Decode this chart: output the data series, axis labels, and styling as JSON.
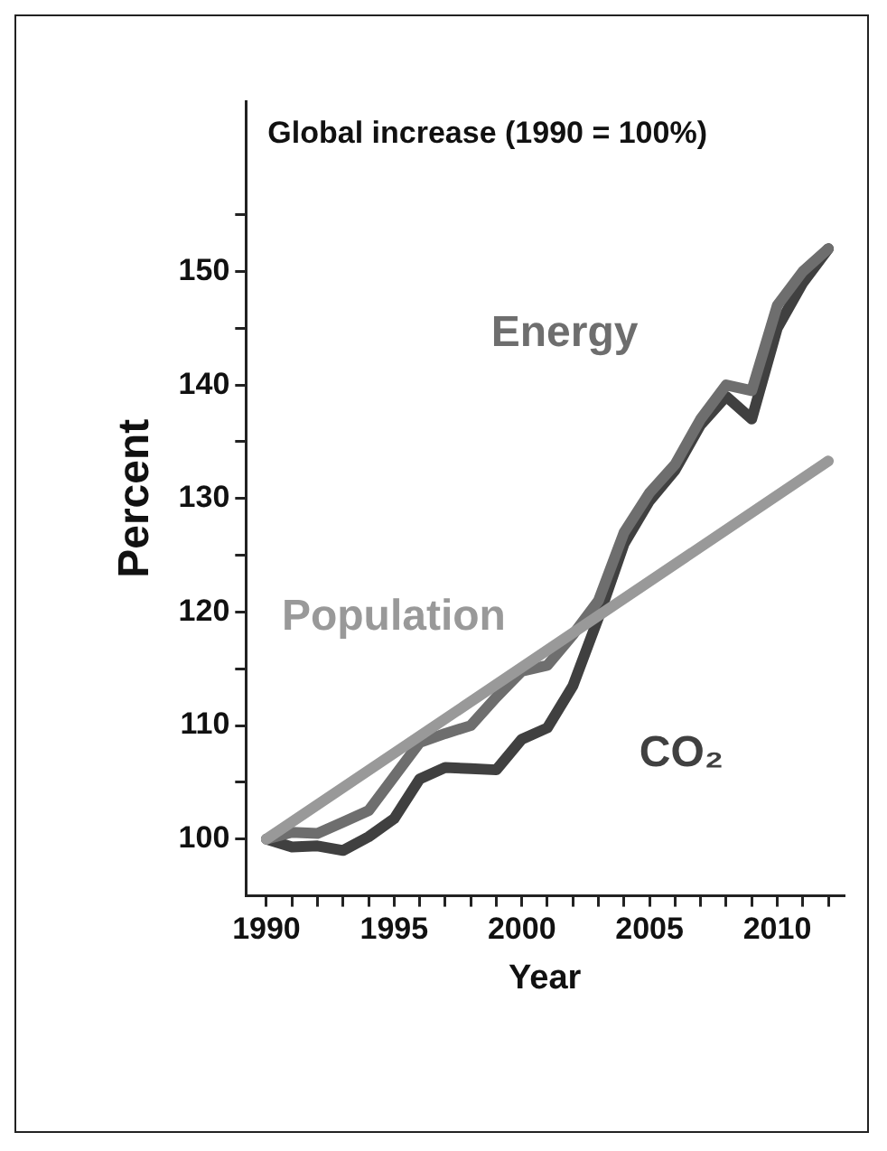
{
  "chart_data": {
    "type": "line",
    "title": "Global increase (1990 = 100%)",
    "xlabel": "Year",
    "ylabel": "Percent",
    "xlim": [
      1989.2,
      2012.6
    ],
    "xticks": [
      1990,
      {
        "value": 1991,
        "label": null
      },
      {
        "value": 1992,
        "label": null
      },
      {
        "value": 1993,
        "label": null
      },
      {
        "value": 1994,
        "label": null
      },
      1995,
      {
        "value": 1996,
        "label": null
      },
      {
        "value": 1997,
        "label": null
      },
      {
        "value": 1998,
        "label": null
      },
      {
        "value": 1999,
        "label": null
      },
      2000,
      {
        "value": 2001,
        "label": null
      },
      {
        "value": 2002,
        "label": null
      },
      {
        "value": 2003,
        "label": null
      },
      {
        "value": 2004,
        "label": null
      },
      2005,
      {
        "value": 2006,
        "label": null
      },
      {
        "value": 2007,
        "label": null
      },
      {
        "value": 2008,
        "label": null
      },
      {
        "value": 2009,
        "label": null
      },
      2010,
      {
        "value": 2011,
        "label": null
      },
      {
        "value": 2012,
        "label": null
      }
    ],
    "ylim": [
      95,
      165
    ],
    "yticks": [
      100,
      {
        "value": 105,
        "label": null
      },
      110,
      {
        "value": 115,
        "label": null
      },
      120,
      {
        "value": 125,
        "label": null
      },
      130,
      {
        "value": 135,
        "label": null
      },
      140,
      {
        "value": 145,
        "label": null
      },
      150,
      {
        "value": 155,
        "label": null
      }
    ],
    "grid": false,
    "legend": false,
    "marker": "none",
    "line_style": "solid",
    "series": [
      {
        "name": "Population",
        "color": "#999999",
        "x": [
          1990,
          2012
        ],
        "values": [
          100,
          133.3
        ]
      },
      {
        "name": "Energy",
        "color": "#6e6e6e",
        "x": [
          1990,
          1991,
          1992,
          1993,
          1994,
          1995,
          1996,
          1997,
          1998,
          1999,
          2000,
          2001,
          2002,
          2003,
          2004,
          2005,
          2006,
          2007,
          2008,
          2009,
          2010,
          2011,
          2012
        ],
        "values": [
          100,
          100.6,
          100.5,
          101.5,
          102.5,
          105.5,
          108.5,
          109.3,
          110,
          112.5,
          114.8,
          115.3,
          118,
          121,
          127,
          130.5,
          133,
          137,
          140,
          139.5,
          147,
          150,
          152
        ]
      },
      {
        "name": "CO₂",
        "color": "#404040",
        "x": [
          1990,
          1991,
          1992,
          1993,
          1994,
          1995,
          1996,
          1997,
          1998,
          1999,
          2000,
          2001,
          2002,
          2003,
          2004,
          2005,
          2006,
          2007,
          2008,
          2009,
          2010,
          2011,
          2012
        ],
        "values": [
          100,
          99.3,
          99.4,
          99,
          100.2,
          101.8,
          105.3,
          106.3,
          106.2,
          106.1,
          108.8,
          109.8,
          113.5,
          119.5,
          126,
          129.8,
          132.5,
          136.5,
          139,
          137,
          145,
          149,
          152
        ]
      }
    ]
  }
}
